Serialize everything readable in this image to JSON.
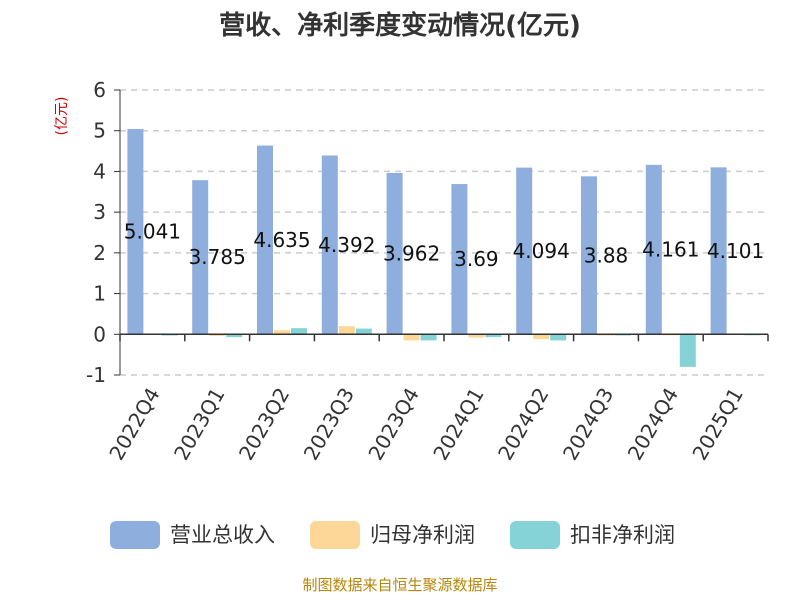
{
  "chart_data": {
    "type": "bar",
    "title": "营收、净利季度变动情况(亿元)",
    "ylabel": "(亿元)",
    "ylim": [
      -1,
      6
    ],
    "yticks": [
      -1,
      0,
      1,
      2,
      3,
      4,
      5,
      6
    ],
    "grid": true,
    "legend_position": "bottom",
    "categories": [
      "2022Q4",
      "2023Q1",
      "2023Q2",
      "2023Q3",
      "2023Q4",
      "2024Q1",
      "2024Q2",
      "2024Q3",
      "2024Q4",
      "2025Q1"
    ],
    "series": [
      {
        "name": "营业总收入",
        "color": "#8eaedd",
        "values": [
          5.041,
          3.785,
          4.635,
          4.392,
          3.962,
          3.69,
          4.094,
          3.88,
          4.161,
          4.101
        ],
        "labels": [
          "5.041",
          "3.785",
          "4.635",
          "4.392",
          "3.962",
          "3.69",
          "4.094",
          "3.88",
          "4.161",
          "4.101"
        ]
      },
      {
        "name": "归母净利润",
        "color": "#fdd797",
        "values": [
          0.01,
          -0.04,
          0.1,
          0.2,
          -0.15,
          -0.08,
          -0.12,
          -0.03,
          -0.01,
          0.01
        ]
      },
      {
        "name": "扣非净利润",
        "color": "#85d3d6",
        "values": [
          -0.03,
          -0.07,
          0.15,
          0.14,
          -0.15,
          -0.07,
          -0.15,
          -0.03,
          -0.8,
          -0.02
        ]
      }
    ]
  },
  "source": "制图数据来自恒生聚源数据库"
}
